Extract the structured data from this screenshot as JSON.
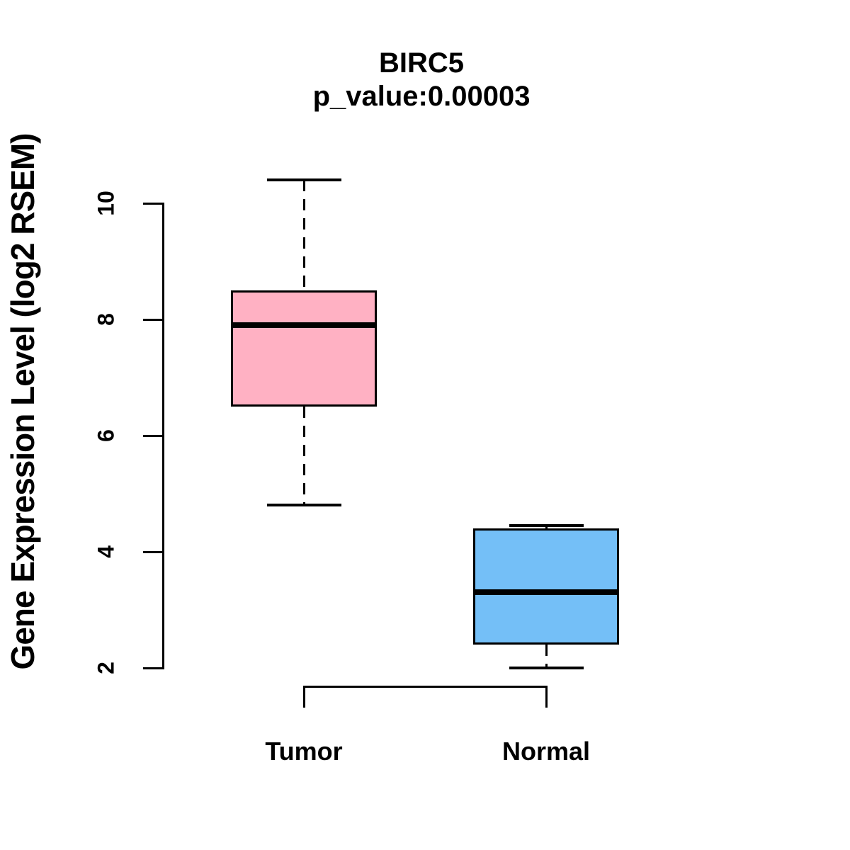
{
  "chart_data": {
    "type": "boxplot",
    "title": "BIRC5",
    "subtitle": "p_value:0.00003",
    "ylabel": "Gene Expression Level (log2 RSEM)",
    "xlabel": "",
    "ylim": [
      2,
      10
    ],
    "yticks": [
      "2",
      "4",
      "6",
      "8",
      "10"
    ],
    "ytick_values": [
      2,
      4,
      6,
      8,
      10
    ],
    "grid": false,
    "legend": "none",
    "groups": [
      {
        "label": "Tumor",
        "color": "#FFB1C3",
        "lower_whisker": 4.8,
        "q1": 6.5,
        "median": 7.9,
        "q3": 8.5,
        "upper_whisker": 10.4
      },
      {
        "label": "Normal",
        "color": "#74BFF7",
        "lower_whisker": 2.0,
        "q1": 2.4,
        "median": 3.3,
        "q3": 4.4,
        "upper_whisker": 4.45
      }
    ],
    "comparison_bracket": {
      "between": [
        "Tumor",
        "Normal"
      ]
    },
    "line_color": "#000000",
    "background_color": "#FFFFFF",
    "whisker_style": "dashed"
  }
}
